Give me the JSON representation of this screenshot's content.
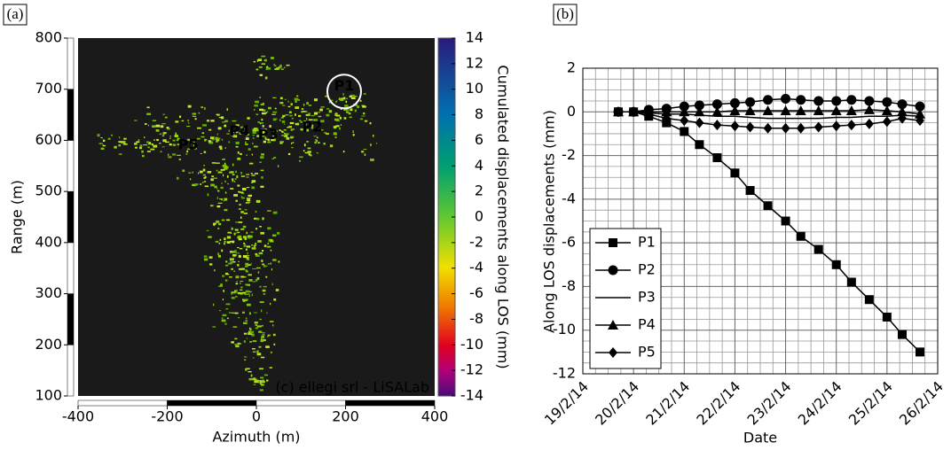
{
  "chart_data": [
    {
      "type": "map",
      "panel_label": "(a)",
      "xlabel": "Azimuth (m)",
      "ylabel": "Range (m)",
      "xlim": [
        -400,
        400
      ],
      "xticks": [
        -400,
        -200,
        0,
        200,
        400
      ],
      "ylim": [
        100,
        800
      ],
      "yticks": [
        100,
        200,
        300,
        400,
        500,
        600,
        700,
        800
      ],
      "colorbar": {
        "label": "Cumulated displacements along LOS (mm)",
        "lim": [
          -14,
          14
        ],
        "ticks": [
          -14,
          -12,
          -10,
          -8,
          -6,
          -4,
          -2,
          0,
          2,
          4,
          6,
          8,
          10,
          12,
          14
        ]
      },
      "annotations": [
        {
          "text": "P1",
          "x": 197,
          "y": 706
        },
        {
          "text": "P2",
          "x": 125,
          "y": 625
        },
        {
          "text": "P3",
          "x": 26,
          "y": 610
        },
        {
          "text": "P4",
          "x": -38,
          "y": 617
        },
        {
          "text": "P5",
          "x": -153,
          "y": 590
        }
      ],
      "credit": "(c) ellegi srl - LiSALab"
    },
    {
      "type": "line",
      "panel_label": "(b)",
      "xlabel": "Date",
      "ylabel": "Along LOS displacements (mm)",
      "xlim": [
        19,
        26
      ],
      "xticks": [
        {
          "value": 19,
          "label": "19/2/14"
        },
        {
          "value": 20,
          "label": "20/2/14"
        },
        {
          "value": 21,
          "label": "21/2/14"
        },
        {
          "value": 22,
          "label": "22/2/14"
        },
        {
          "value": 23,
          "label": "23/2/14"
        },
        {
          "value": 24,
          "label": "24/2/14"
        },
        {
          "value": 25,
          "label": "25/2/14"
        },
        {
          "value": 26,
          "label": "26/2/14"
        }
      ],
      "ylim": [
        -12,
        2
      ],
      "yticks": [
        -12,
        -10,
        -8,
        -6,
        -4,
        -2,
        0,
        2
      ],
      "minor_xticks": [
        19.25,
        19.5,
        19.75,
        20.25,
        20.5,
        20.75,
        21.25,
        21.5,
        21.75,
        22.25,
        22.5,
        22.75,
        23.25,
        23.5,
        23.75,
        24.25,
        24.5,
        24.75,
        25.25,
        25.5,
        25.75
      ],
      "minor_yticks": [
        -11.5,
        -11,
        -10.5,
        -9.5,
        -9,
        -8.5,
        -7.5,
        -7,
        -6.5,
        -5.5,
        -5,
        -4.5,
        -3.5,
        -3,
        -2.5,
        -1.5,
        -1,
        -0.5,
        0.5,
        1,
        1.5
      ],
      "grid": true,
      "legend": "lower left",
      "x": [
        19.7,
        20.0,
        20.3,
        20.65,
        21.0,
        21.3,
        21.65,
        22.0,
        22.3,
        22.65,
        23.0,
        23.3,
        23.65,
        24.0,
        24.3,
        24.65,
        25.0,
        25.3,
        25.65
      ],
      "series": [
        {
          "name": "P1",
          "color": "#000000",
          "marker": "square",
          "values": [
            0,
            0,
            -0.2,
            -0.5,
            -0.9,
            -1.5,
            -2.1,
            -2.8,
            -3.6,
            -4.3,
            -5.0,
            -5.7,
            -6.3,
            -7.0,
            -7.8,
            -8.6,
            -9.4,
            -10.2,
            -11.0
          ]
        },
        {
          "name": "P2",
          "color": "#000000",
          "marker": "circle",
          "values": [
            0,
            0,
            0.1,
            0.15,
            0.25,
            0.3,
            0.35,
            0.4,
            0.45,
            0.55,
            0.6,
            0.55,
            0.5,
            0.5,
            0.55,
            0.5,
            0.45,
            0.35,
            0.25
          ]
        },
        {
          "name": "P3",
          "color": "#000000",
          "marker": "none",
          "values": [
            0,
            0,
            -0.05,
            -0.1,
            -0.1,
            -0.15,
            -0.2,
            -0.2,
            -0.25,
            -0.3,
            -0.3,
            -0.3,
            -0.3,
            -0.25,
            -0.25,
            -0.2,
            -0.2,
            -0.15,
            -0.2
          ]
        },
        {
          "name": "P4",
          "color": "#000000",
          "marker": "triangle",
          "values": [
            0,
            0,
            0,
            0,
            0,
            0,
            0,
            0.05,
            0.05,
            0.05,
            0.05,
            0.05,
            0.05,
            0.05,
            0.05,
            0.1,
            0.05,
            0,
            -0.1
          ]
        },
        {
          "name": "P5",
          "color": "#000000",
          "marker": "diamond",
          "values": [
            0,
            0,
            -0.1,
            -0.3,
            -0.4,
            -0.5,
            -0.6,
            -0.65,
            -0.7,
            -0.75,
            -0.75,
            -0.75,
            -0.7,
            -0.65,
            -0.6,
            -0.55,
            -0.45,
            -0.3,
            -0.4
          ]
        }
      ]
    }
  ]
}
